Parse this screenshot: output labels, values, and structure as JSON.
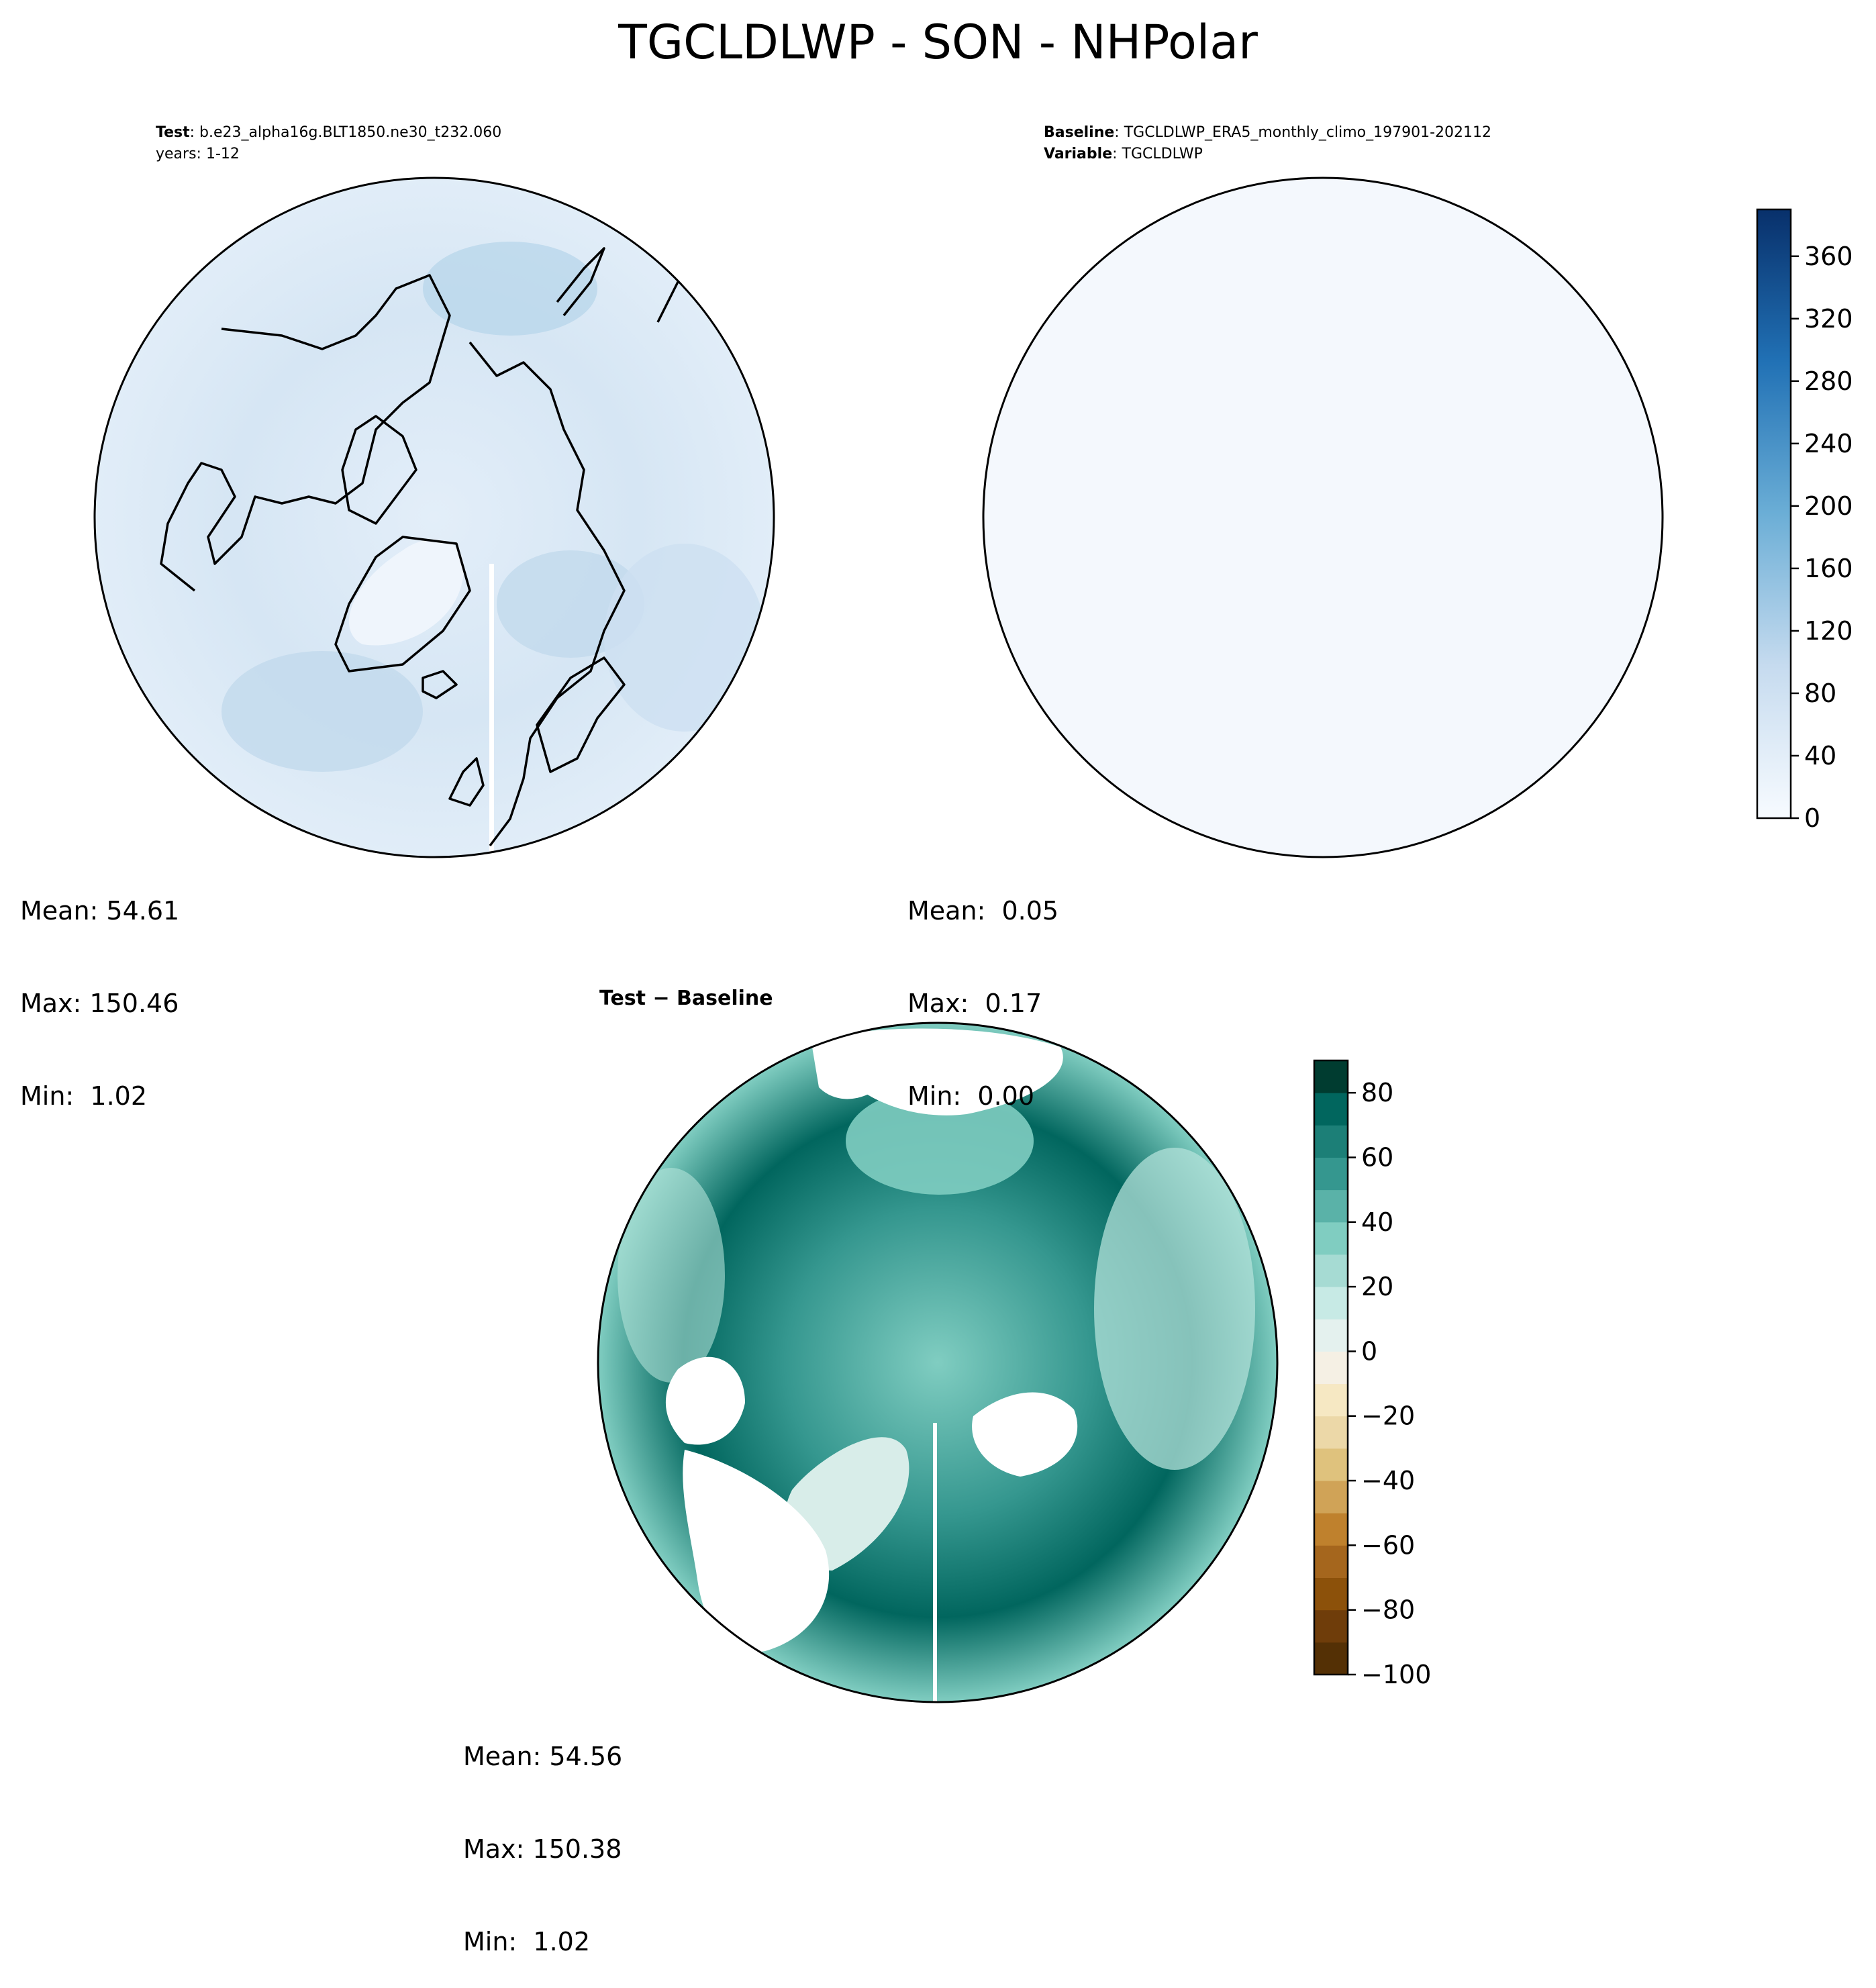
{
  "figure": {
    "title": "TGCLDLWP - SON - NHPolar"
  },
  "panels": {
    "test": {
      "label_bold": "Test",
      "label_text": ": b.e23_alpha16g.BLT1850.ne30_t232.060",
      "label_line2": "years: 1-12",
      "stats": [
        "Mean: 54.61",
        "Max: 150.46",
        "Min:  1.02"
      ]
    },
    "baseline": {
      "label_bold": "Baseline",
      "label_text": ": TGCLDLWP_ERA5_monthly_climo_197901-202112",
      "label2_bold": "Variable",
      "label2_text": ": TGCLDLWP",
      "stats": [
        "Mean:  0.05",
        "Max:  0.17",
        "Min:  0.00"
      ]
    },
    "diff": {
      "title": "Test − Baseline",
      "stats": [
        "Mean: 54.56",
        "Max: 150.38",
        "Min:  1.02"
      ]
    }
  },
  "colorbars": {
    "main": {
      "colormap": "Blues",
      "ticks": [
        "0",
        "40",
        "80",
        "120",
        "160",
        "200",
        "240",
        "280",
        "320",
        "360"
      ],
      "range": [
        0,
        390
      ],
      "levels": 25,
      "colors": [
        "#f7fbff",
        "#08306b"
      ]
    },
    "diff": {
      "colormap": "BrBG",
      "ticks": [
        "−100",
        "−80",
        "−60",
        "−40",
        "−20",
        "0",
        "20",
        "40",
        "60",
        "80"
      ],
      "range": [
        -100,
        90
      ],
      "levels": 19,
      "colors": [
        "#543005",
        "#f5f5f5",
        "#003c30"
      ]
    }
  },
  "chart_data": {
    "type": "map",
    "projection": "north-polar-stereographic",
    "variable": "TGCLDLWP",
    "season": "SON",
    "region": "NHPolar",
    "panels": [
      {
        "name": "Test",
        "mean": 54.61,
        "max": 150.46,
        "min": 1.02
      },
      {
        "name": "Baseline",
        "mean": 0.05,
        "max": 0.17,
        "min": 0.0
      },
      {
        "name": "Test - Baseline",
        "mean": 54.56,
        "max": 150.38,
        "min": 1.02
      }
    ]
  }
}
